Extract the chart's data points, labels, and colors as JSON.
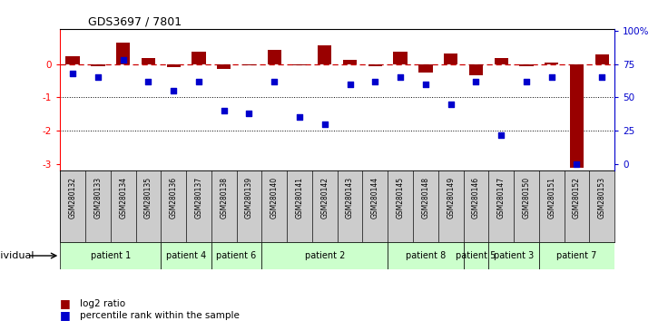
{
  "title": "GDS3697 / 7801",
  "samples": [
    "GSM280132",
    "GSM280133",
    "GSM280134",
    "GSM280135",
    "GSM280136",
    "GSM280137",
    "GSM280138",
    "GSM280139",
    "GSM280140",
    "GSM280141",
    "GSM280142",
    "GSM280143",
    "GSM280144",
    "GSM280145",
    "GSM280148",
    "GSM280149",
    "GSM280146",
    "GSM280147",
    "GSM280150",
    "GSM280151",
    "GSM280152",
    "GSM280153"
  ],
  "log2_ratio": [
    0.22,
    -0.08,
    0.65,
    0.18,
    -0.1,
    0.38,
    -0.15,
    -0.05,
    0.42,
    -0.03,
    0.55,
    0.12,
    -0.08,
    0.37,
    -0.25,
    0.32,
    -0.35,
    0.18,
    -0.07,
    0.05,
    -3.1,
    0.28
  ],
  "percentile": [
    68,
    65,
    78,
    62,
    55,
    62,
    40,
    38,
    62,
    35,
    30,
    60,
    62,
    65,
    60,
    45,
    62,
    22,
    62,
    65,
    0,
    65
  ],
  "patients": [
    {
      "label": "patient 1",
      "start": 0,
      "end": 4
    },
    {
      "label": "patient 4",
      "start": 4,
      "end": 6
    },
    {
      "label": "patient 6",
      "start": 6,
      "end": 8
    },
    {
      "label": "patient 2",
      "start": 8,
      "end": 13
    },
    {
      "label": "patient 8",
      "start": 13,
      "end": 16
    },
    {
      "label": "patient 5",
      "start": 16,
      "end": 17
    },
    {
      "label": "patient 3",
      "start": 17,
      "end": 19
    },
    {
      "label": "patient 7",
      "start": 19,
      "end": 22
    }
  ],
  "bar_color": "#990000",
  "dot_color": "#0000cc",
  "dashed_line_color": "#cc0000",
  "ylim_left": [
    -3.2,
    1.05
  ],
  "yticks_left": [
    0,
    -1,
    -2,
    -3
  ],
  "yticks_right": [
    0,
    25,
    50,
    75,
    100
  ],
  "right_axis_color": "#0000cc",
  "bg_color": "#ffffff",
  "sample_bg": "#cccccc",
  "patient_bg": "#ccffcc",
  "legend_log2": "log2 ratio",
  "legend_pct": "percentile rank within the sample",
  "right_tick_labels": [
    "0",
    "25",
    "50",
    "75",
    "100%"
  ]
}
